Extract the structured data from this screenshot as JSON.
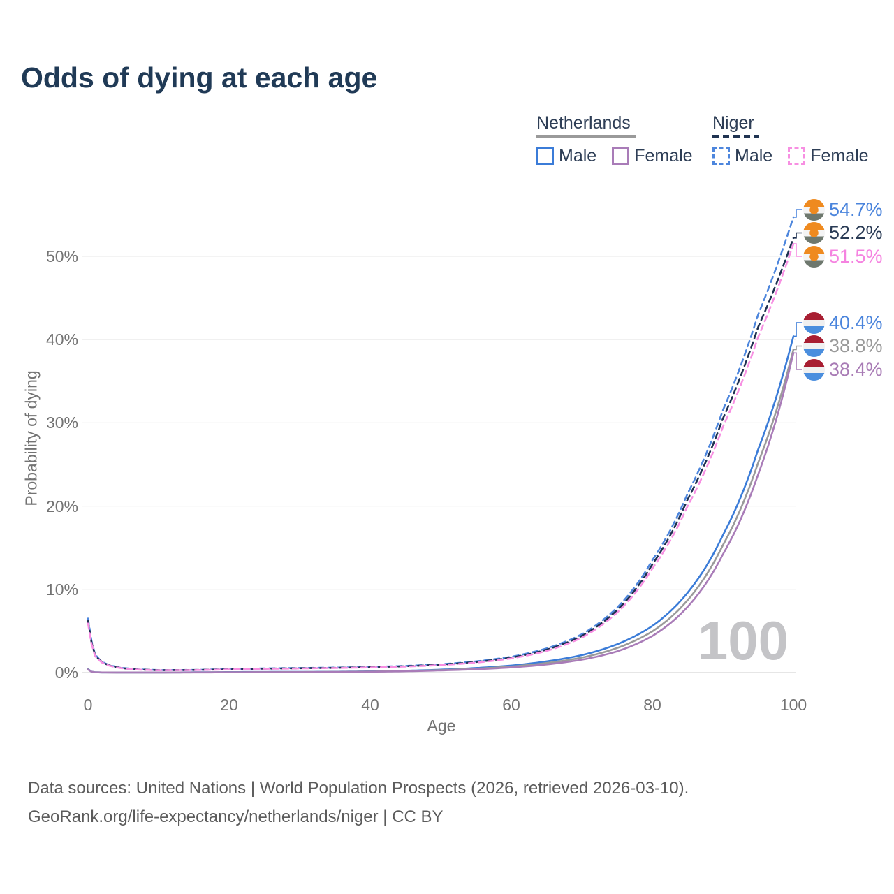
{
  "title": "Odds of dying at each age",
  "watermark": "100",
  "footer": {
    "line1": "Data sources: United Nations | World Population Prospects (2026, retrieved 2026-03-10).",
    "line2": "GeoRank.org/life-expectancy/netherlands/niger | CC BY"
  },
  "legend": {
    "groups": [
      {
        "label": "Netherlands",
        "underline_style": "solid",
        "underline_color": "#9a9a9a",
        "items": [
          {
            "label": "Male",
            "color": "#3b7cd8",
            "dashed": false
          },
          {
            "label": "Female",
            "color": "#a97cb8",
            "dashed": false
          }
        ]
      },
      {
        "label": "Niger",
        "underline_style": "dashed",
        "underline_color": "#203452",
        "items": [
          {
            "label": "Male",
            "color": "#4d86dd",
            "dashed": true
          },
          {
            "label": "Female",
            "color": "#f78fe2",
            "dashed": true
          }
        ]
      }
    ]
  },
  "chart_data": {
    "type": "line",
    "title": "Odds of dying at each age",
    "xlabel": "Age",
    "ylabel": "Probability of dying",
    "xlim": [
      0,
      100
    ],
    "ylim_pct": [
      0,
      56
    ],
    "x_ticks": [
      0,
      20,
      40,
      60,
      80,
      100
    ],
    "y_ticks": [
      {
        "pct": 0,
        "label": "0%"
      },
      {
        "pct": 10,
        "label": "10%"
      },
      {
        "pct": 20,
        "label": "20%"
      },
      {
        "pct": 30,
        "label": "30%"
      },
      {
        "pct": 40,
        "label": "40%"
      },
      {
        "pct": 50,
        "label": "50%"
      }
    ],
    "grid": true,
    "legend_position": "top-right",
    "ages": [
      0,
      1,
      2,
      3,
      4,
      5,
      7,
      10,
      15,
      20,
      25,
      30,
      35,
      40,
      45,
      50,
      55,
      60,
      65,
      70,
      75,
      80,
      85,
      90,
      95,
      100
    ],
    "series": [
      {
        "name": "Niger Male",
        "country": "Niger",
        "sex": "male",
        "color": "#4d86dd",
        "dashed": true,
        "flag": "niger",
        "end_label": "54.7%",
        "end_value": 54.7,
        "label_color": "#4a84dc",
        "values_pct": [
          6.5,
          2.2,
          1.3,
          0.9,
          0.7,
          0.55,
          0.4,
          0.3,
          0.32,
          0.42,
          0.5,
          0.55,
          0.6,
          0.68,
          0.8,
          1.0,
          1.35,
          1.9,
          2.9,
          4.6,
          7.8,
          13.5,
          21.5,
          31.5,
          43.0,
          54.7
        ]
      },
      {
        "name": "Niger Total",
        "country": "Niger",
        "sex": "both",
        "color": "#1e3050",
        "dashed": true,
        "flag": "niger",
        "end_label": "52.2%",
        "end_value": 52.2,
        "label_color": "#2a3b55",
        "values_pct": [
          6.2,
          2.1,
          1.25,
          0.87,
          0.67,
          0.52,
          0.38,
          0.29,
          0.31,
          0.4,
          0.47,
          0.52,
          0.57,
          0.65,
          0.76,
          0.95,
          1.27,
          1.8,
          2.75,
          4.4,
          7.5,
          13.0,
          20.8,
          30.5,
          41.5,
          52.2
        ]
      },
      {
        "name": "Niger Female",
        "country": "Niger",
        "sex": "female",
        "color": "#f78fe2",
        "dashed": true,
        "flag": "niger",
        "end_label": "51.5%",
        "end_value": 51.5,
        "label_color": "#f583e0",
        "values_pct": [
          5.9,
          2.0,
          1.2,
          0.84,
          0.64,
          0.5,
          0.36,
          0.28,
          0.3,
          0.38,
          0.45,
          0.5,
          0.55,
          0.62,
          0.72,
          0.9,
          1.2,
          1.7,
          2.6,
          4.2,
          7.2,
          12.5,
          20.0,
          29.5,
          40.3,
          51.5
        ]
      },
      {
        "name": "Netherlands Male",
        "country": "Netherlands",
        "sex": "male",
        "color": "#3b7cd8",
        "dashed": false,
        "flag": "netherlands",
        "end_label": "40.4%",
        "end_value": 40.4,
        "label_color": "#4a84dc",
        "values_pct": [
          0.42,
          0.03,
          0.02,
          0.015,
          0.012,
          0.01,
          0.01,
          0.01,
          0.03,
          0.06,
          0.07,
          0.08,
          0.1,
          0.15,
          0.22,
          0.35,
          0.55,
          0.85,
          1.35,
          2.1,
          3.4,
          5.6,
          9.6,
          16.5,
          26.8,
          40.4
        ]
      },
      {
        "name": "Netherlands Total",
        "country": "Netherlands",
        "sex": "both",
        "color": "#9a9a9a",
        "dashed": false,
        "flag": "netherlands",
        "end_label": "38.8%",
        "end_value": 38.8,
        "label_color": "#9a9a9a",
        "values_pct": [
          0.39,
          0.028,
          0.018,
          0.013,
          0.011,
          0.009,
          0.009,
          0.009,
          0.022,
          0.04,
          0.05,
          0.06,
          0.08,
          0.12,
          0.19,
          0.3,
          0.47,
          0.73,
          1.15,
          1.8,
          2.95,
          4.95,
          8.7,
          15.3,
          25.2,
          38.8
        ]
      },
      {
        "name": "Netherlands Female",
        "country": "Netherlands",
        "sex": "female",
        "color": "#a97cb8",
        "dashed": false,
        "flag": "netherlands",
        "end_label": "38.4%",
        "end_value": 38.4,
        "label_color": "#a87bb5",
        "values_pct": [
          0.36,
          0.026,
          0.017,
          0.012,
          0.01,
          0.008,
          0.008,
          0.008,
          0.016,
          0.026,
          0.035,
          0.05,
          0.065,
          0.1,
          0.16,
          0.26,
          0.4,
          0.62,
          0.98,
          1.55,
          2.55,
          4.4,
          7.9,
          14.2,
          23.8,
          38.4
        ]
      }
    ],
    "flag_colors": {
      "niger": {
        "top": "#ef8a1f",
        "middle": "#f4f4f4",
        "bottom": "#6e786e",
        "dot": "#ef8a1f"
      },
      "netherlands": {
        "top": "#a81e32",
        "middle": "#f0f0f0",
        "bottom": "#4a8ede"
      }
    }
  }
}
